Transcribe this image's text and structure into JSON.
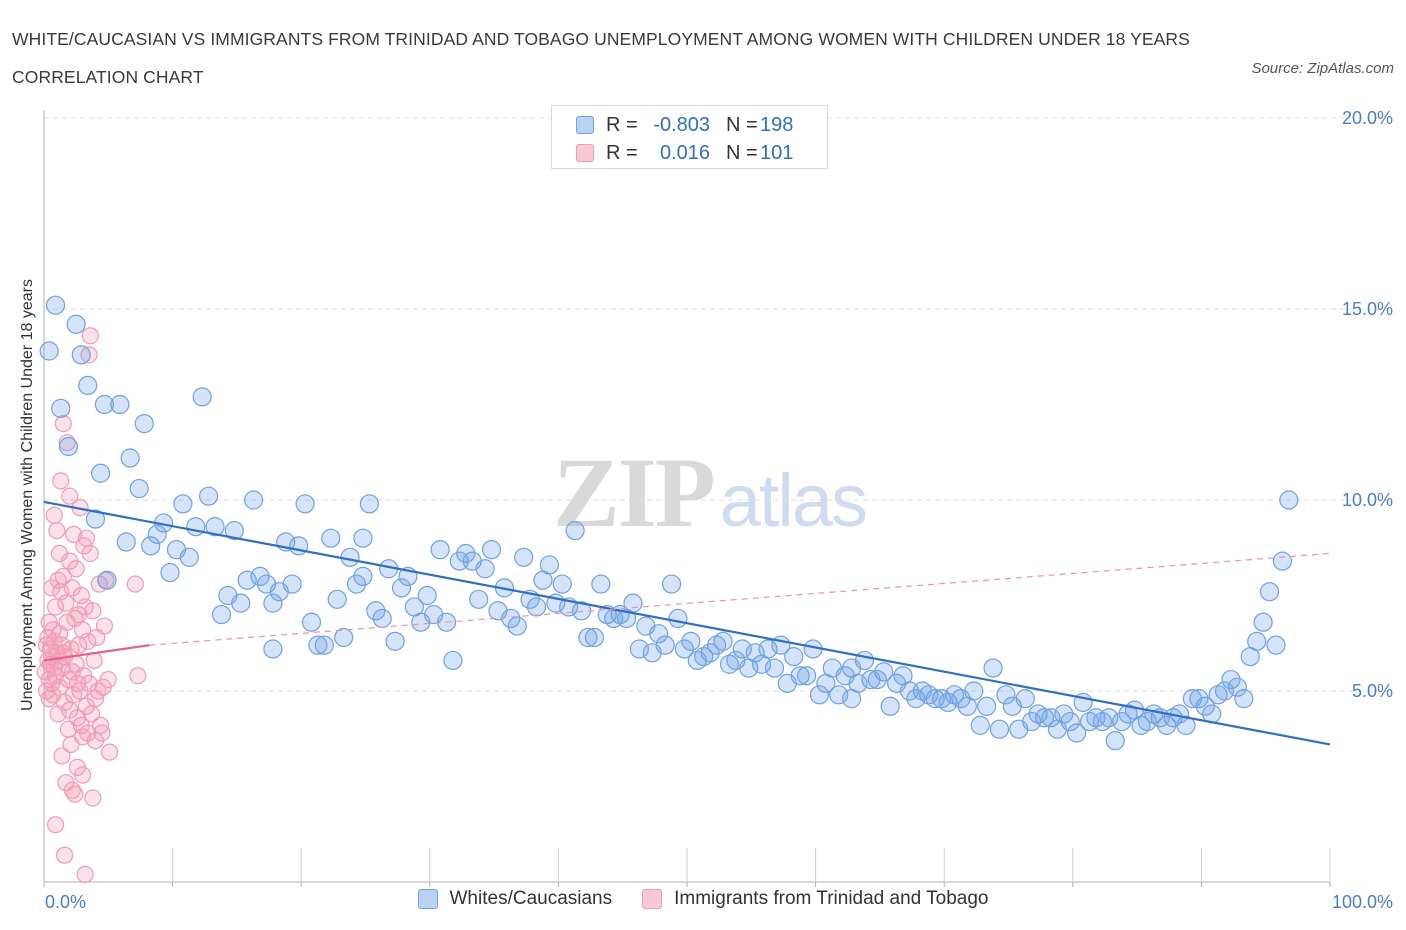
{
  "title": "WHITE/CAUCASIAN VS IMMIGRANTS FROM TRINIDAD AND TOBAGO UNEMPLOYMENT AMONG WOMEN WITH CHILDREN UNDER 18 YEARS CORRELATION CHART",
  "source": "Source: ZipAtlas.com",
  "watermark": {
    "zip": "ZIP",
    "atlas": "atlas"
  },
  "legend": {
    "rows": [
      {
        "r_label": "R =",
        "r_value": "-0.803",
        "n_label": "N =",
        "n_value": "198"
      },
      {
        "r_label": "R =",
        "r_value": "0.016",
        "n_label": "N =",
        "n_value": "101"
      }
    ]
  },
  "bottom_legend": {
    "series1": "Whites/Caucasians",
    "series2": "Immigrants from Trinidad and Tobago"
  },
  "chart_data": {
    "type": "scatter",
    "title": "WHITE/CAUCASIAN VS IMMIGRANTS FROM TRINIDAD AND TOBAGO UNEMPLOYMENT AMONG WOMEN WITH CHILDREN UNDER 18 YEARS CORRELATION CHART",
    "xlabel": "",
    "ylabel": "Unemployment Among Women with Children Under 18 years",
    "xlim": [
      0,
      100
    ],
    "ylim": [
      0,
      20
    ],
    "x_tick_labels": [
      "0.0%",
      "100.0%"
    ],
    "y_ticks": [
      5,
      10,
      15,
      20
    ],
    "y_tick_labels": [
      "5.0%",
      "10.0%",
      "15.0%",
      "20.0%"
    ],
    "grid": true,
    "legend_position": "top-center",
    "colors": {
      "series1": "#6fa2e3",
      "series1_line": "#2f6fc4",
      "series2": "#f29bb5",
      "series2_line": "#e8608a",
      "axis_text": "#4a7fc4"
    },
    "series": [
      {
        "name": "Whites/Caucasians",
        "color": "#6fa2e3",
        "trend": {
          "x": [
            0,
            100
          ],
          "y": [
            9.95,
            3.6
          ]
        },
        "points": [
          [
            0.4,
            13.9
          ],
          [
            0.9,
            15.1
          ],
          [
            1.3,
            12.4
          ],
          [
            1.9,
            11.4
          ],
          [
            2.5,
            14.6
          ],
          [
            2.9,
            13.8
          ],
          [
            3.4,
            13.0
          ],
          [
            4.0,
            9.5
          ],
          [
            4.4,
            10.7
          ],
          [
            4.9,
            7.9
          ],
          [
            4.7,
            12.5
          ],
          [
            5.9,
            12.5
          ],
          [
            6.4,
            8.9
          ],
          [
            6.7,
            11.1
          ],
          [
            7.4,
            10.3
          ],
          [
            7.8,
            12.0
          ],
          [
            8.3,
            8.8
          ],
          [
            8.8,
            9.1
          ],
          [
            9.3,
            9.4
          ],
          [
            9.8,
            8.1
          ],
          [
            10.3,
            8.7
          ],
          [
            10.8,
            9.9
          ],
          [
            11.3,
            8.5
          ],
          [
            11.8,
            9.3
          ],
          [
            12.3,
            12.7
          ],
          [
            12.8,
            10.1
          ],
          [
            13.3,
            9.3
          ],
          [
            13.8,
            7.0
          ],
          [
            14.3,
            7.5
          ],
          [
            14.8,
            9.2
          ],
          [
            15.3,
            7.3
          ],
          [
            15.8,
            7.9
          ],
          [
            16.3,
            10.0
          ],
          [
            16.8,
            8.0
          ],
          [
            17.3,
            7.8
          ],
          [
            17.8,
            7.3
          ],
          [
            18.3,
            7.6
          ],
          [
            18.8,
            8.9
          ],
          [
            19.3,
            7.8
          ],
          [
            19.8,
            8.8
          ],
          [
            20.3,
            9.9
          ],
          [
            20.8,
            6.8
          ],
          [
            21.3,
            6.2
          ],
          [
            21.8,
            6.2
          ],
          [
            22.3,
            9.0
          ],
          [
            22.8,
            7.4
          ],
          [
            23.3,
            6.4
          ],
          [
            23.8,
            8.5
          ],
          [
            24.3,
            7.8
          ],
          [
            24.8,
            8.0
          ],
          [
            25.3,
            9.9
          ],
          [
            25.8,
            7.1
          ],
          [
            26.3,
            6.9
          ],
          [
            26.8,
            8.2
          ],
          [
            27.3,
            6.3
          ],
          [
            27.8,
            7.7
          ],
          [
            28.3,
            8.0
          ],
          [
            28.8,
            7.2
          ],
          [
            29.3,
            6.8
          ],
          [
            29.8,
            7.5
          ],
          [
            30.3,
            7.0
          ],
          [
            30.8,
            8.7
          ],
          [
            31.3,
            6.8
          ],
          [
            31.8,
            5.8
          ],
          [
            32.3,
            8.4
          ],
          [
            32.8,
            8.6
          ],
          [
            33.3,
            8.4
          ],
          [
            33.8,
            7.4
          ],
          [
            34.3,
            8.2
          ],
          [
            34.8,
            8.7
          ],
          [
            35.3,
            7.1
          ],
          [
            35.8,
            7.7
          ],
          [
            36.3,
            6.9
          ],
          [
            36.8,
            6.7
          ],
          [
            37.3,
            8.5
          ],
          [
            37.8,
            7.4
          ],
          [
            38.3,
            7.2
          ],
          [
            38.8,
            7.9
          ],
          [
            39.3,
            8.3
          ],
          [
            39.8,
            7.3
          ],
          [
            40.3,
            7.8
          ],
          [
            40.8,
            7.2
          ],
          [
            41.3,
            9.2
          ],
          [
            41.8,
            7.1
          ],
          [
            42.3,
            6.4
          ],
          [
            42.8,
            6.4
          ],
          [
            43.3,
            7.8
          ],
          [
            43.8,
            7.0
          ],
          [
            44.3,
            6.9
          ],
          [
            44.8,
            7.0
          ],
          [
            45.3,
            6.9
          ],
          [
            45.8,
            7.3
          ],
          [
            46.3,
            6.1
          ],
          [
            46.8,
            6.7
          ],
          [
            47.3,
            6.0
          ],
          [
            47.8,
            6.5
          ],
          [
            48.3,
            6.2
          ],
          [
            48.8,
            7.8
          ],
          [
            49.3,
            6.9
          ],
          [
            49.8,
            6.1
          ],
          [
            50.3,
            6.3
          ],
          [
            50.8,
            5.8
          ],
          [
            51.3,
            5.9
          ],
          [
            51.8,
            6.0
          ],
          [
            52.3,
            6.2
          ],
          [
            52.8,
            6.3
          ],
          [
            53.3,
            5.7
          ],
          [
            53.8,
            5.8
          ],
          [
            54.3,
            6.1
          ],
          [
            54.8,
            5.6
          ],
          [
            55.3,
            6.0
          ],
          [
            55.8,
            5.7
          ],
          [
            56.3,
            6.1
          ],
          [
            56.8,
            5.6
          ],
          [
            57.3,
            6.2
          ],
          [
            57.8,
            5.2
          ],
          [
            58.3,
            5.9
          ],
          [
            58.8,
            5.4
          ],
          [
            59.3,
            5.4
          ],
          [
            59.8,
            6.1
          ],
          [
            60.3,
            4.9
          ],
          [
            60.8,
            5.2
          ],
          [
            61.3,
            5.6
          ],
          [
            61.8,
            4.9
          ],
          [
            62.3,
            5.4
          ],
          [
            62.8,
            5.6
          ],
          [
            63.3,
            5.2
          ],
          [
            63.8,
            5.8
          ],
          [
            64.3,
            5.3
          ],
          [
            64.8,
            5.3
          ],
          [
            65.3,
            5.5
          ],
          [
            65.8,
            4.6
          ],
          [
            66.3,
            5.2
          ],
          [
            66.8,
            5.4
          ],
          [
            67.3,
            5.0
          ],
          [
            67.8,
            4.8
          ],
          [
            68.3,
            5.0
          ],
          [
            68.8,
            4.9
          ],
          [
            69.3,
            4.8
          ],
          [
            69.8,
            4.8
          ],
          [
            70.3,
            4.7
          ],
          [
            70.8,
            4.9
          ],
          [
            71.3,
            4.8
          ],
          [
            71.8,
            4.6
          ],
          [
            72.3,
            5.0
          ],
          [
            72.8,
            4.1
          ],
          [
            73.3,
            4.6
          ],
          [
            73.8,
            5.6
          ],
          [
            74.3,
            4.0
          ],
          [
            74.8,
            4.9
          ],
          [
            75.3,
            4.6
          ],
          [
            75.8,
            4.0
          ],
          [
            76.3,
            4.8
          ],
          [
            76.8,
            4.2
          ],
          [
            77.3,
            4.4
          ],
          [
            77.8,
            4.3
          ],
          [
            78.3,
            4.3
          ],
          [
            78.8,
            4.0
          ],
          [
            79.3,
            4.4
          ],
          [
            79.8,
            4.2
          ],
          [
            80.3,
            3.9
          ],
          [
            80.8,
            4.7
          ],
          [
            81.3,
            4.2
          ],
          [
            81.8,
            4.3
          ],
          [
            82.3,
            4.2
          ],
          [
            82.8,
            4.3
          ],
          [
            83.3,
            3.7
          ],
          [
            83.8,
            4.2
          ],
          [
            84.3,
            4.4
          ],
          [
            84.8,
            4.5
          ],
          [
            85.3,
            4.1
          ],
          [
            85.8,
            4.2
          ],
          [
            86.3,
            4.4
          ],
          [
            86.8,
            4.3
          ],
          [
            87.3,
            4.1
          ],
          [
            87.8,
            4.3
          ],
          [
            88.3,
            4.4
          ],
          [
            88.8,
            4.1
          ],
          [
            89.3,
            4.8
          ],
          [
            89.8,
            4.8
          ],
          [
            90.3,
            4.6
          ],
          [
            90.8,
            4.4
          ],
          [
            91.3,
            4.9
          ],
          [
            91.8,
            5.0
          ],
          [
            92.3,
            5.3
          ],
          [
            92.8,
            5.1
          ],
          [
            93.3,
            4.8
          ],
          [
            93.8,
            5.9
          ],
          [
            94.3,
            6.3
          ],
          [
            94.8,
            6.8
          ],
          [
            95.3,
            7.6
          ],
          [
            95.8,
            6.2
          ],
          [
            96.3,
            8.4
          ],
          [
            96.8,
            10.0
          ],
          [
            24.8,
            9.0
          ],
          [
            17.8,
            6.1
          ],
          [
            62.8,
            4.8
          ]
        ]
      },
      {
        "name": "Immigrants from Trinidad and Tobago",
        "color": "#f29bb5",
        "trend": {
          "x": [
            0,
            8.2
          ],
          "y": [
            5.8,
            6.2
          ]
        },
        "trend_extended": {
          "x": [
            8.2,
            100
          ],
          "y": [
            6.2,
            8.6
          ]
        },
        "points": [
          [
            0.1,
            5.5
          ],
          [
            0.2,
            6.2
          ],
          [
            0.2,
            5.0
          ],
          [
            0.3,
            5.8
          ],
          [
            0.3,
            6.4
          ],
          [
            0.4,
            5.3
          ],
          [
            0.4,
            6.8
          ],
          [
            0.5,
            5.7
          ],
          [
            0.5,
            6.1
          ],
          [
            0.6,
            5.2
          ],
          [
            0.6,
            5.9
          ],
          [
            0.7,
            6.6
          ],
          [
            0.7,
            4.9
          ],
          [
            0.8,
            5.6
          ],
          [
            0.8,
            6.3
          ],
          [
            0.9,
            7.2
          ],
          [
            0.9,
            5.4
          ],
          [
            1.0,
            6.0
          ],
          [
            1.0,
            9.2
          ],
          [
            1.1,
            5.8
          ],
          [
            1.1,
            4.4
          ],
          [
            1.2,
            6.5
          ],
          [
            1.2,
            5.1
          ],
          [
            1.3,
            7.6
          ],
          [
            1.3,
            10.5
          ],
          [
            1.4,
            5.6
          ],
          [
            1.4,
            6.2
          ],
          [
            1.5,
            12.0
          ],
          [
            1.5,
            8.0
          ],
          [
            1.6,
            4.7
          ],
          [
            1.6,
            5.9
          ],
          [
            1.7,
            7.3
          ],
          [
            1.7,
            2.6
          ],
          [
            1.8,
            11.5
          ],
          [
            1.8,
            6.8
          ],
          [
            1.9,
            5.3
          ],
          [
            1.9,
            4.0
          ],
          [
            2.0,
            10.1
          ],
          [
            2.0,
            8.4
          ],
          [
            2.1,
            6.1
          ],
          [
            2.1,
            3.6
          ],
          [
            2.2,
            7.7
          ],
          [
            2.2,
            5.5
          ],
          [
            2.3,
            9.1
          ],
          [
            2.3,
            4.9
          ],
          [
            2.4,
            6.9
          ],
          [
            2.4,
            2.3
          ],
          [
            2.5,
            8.2
          ],
          [
            2.5,
            5.7
          ],
          [
            2.6,
            3.0
          ],
          [
            2.6,
            4.3
          ],
          [
            2.7,
            7.0
          ],
          [
            2.7,
            6.2
          ],
          [
            2.8,
            9.8
          ],
          [
            2.8,
            5.0
          ],
          [
            2.9,
            4.1
          ],
          [
            2.9,
            7.5
          ],
          [
            3.0,
            6.6
          ],
          [
            3.0,
            3.8
          ],
          [
            3.1,
            8.8
          ],
          [
            3.1,
            5.4
          ],
          [
            3.2,
            7.2
          ],
          [
            3.2,
            0.2
          ],
          [
            3.3,
            4.6
          ],
          [
            3.3,
            9.0
          ],
          [
            3.4,
            6.3
          ],
          [
            3.4,
            3.9
          ],
          [
            3.5,
            13.8
          ],
          [
            3.5,
            5.2
          ],
          [
            3.6,
            14.3
          ],
          [
            3.6,
            8.6
          ],
          [
            3.7,
            4.4
          ],
          [
            3.8,
            2.2
          ],
          [
            3.8,
            7.1
          ],
          [
            3.9,
            5.8
          ],
          [
            4.0,
            4.8
          ],
          [
            4.0,
            3.7
          ],
          [
            4.1,
            6.4
          ],
          [
            4.2,
            5.0
          ],
          [
            4.3,
            7.8
          ],
          [
            4.4,
            4.1
          ],
          [
            4.5,
            3.9
          ],
          [
            4.6,
            5.1
          ],
          [
            4.7,
            6.7
          ],
          [
            4.8,
            7.9
          ],
          [
            5.0,
            5.3
          ],
          [
            5.1,
            3.4
          ],
          [
            0.9,
            1.5
          ],
          [
            1.6,
            0.7
          ],
          [
            2.0,
            4.5
          ],
          [
            1.2,
            8.6
          ],
          [
            0.6,
            7.7
          ],
          [
            0.4,
            4.8
          ],
          [
            1.4,
            3.3
          ],
          [
            2.2,
            2.4
          ],
          [
            0.8,
            9.6
          ],
          [
            1.5,
            6.0
          ],
          [
            2.6,
            5.2
          ],
          [
            3.0,
            2.8
          ],
          [
            1.1,
            7.9
          ],
          [
            7.1,
            7.8
          ],
          [
            7.3,
            5.4
          ]
        ]
      }
    ]
  }
}
